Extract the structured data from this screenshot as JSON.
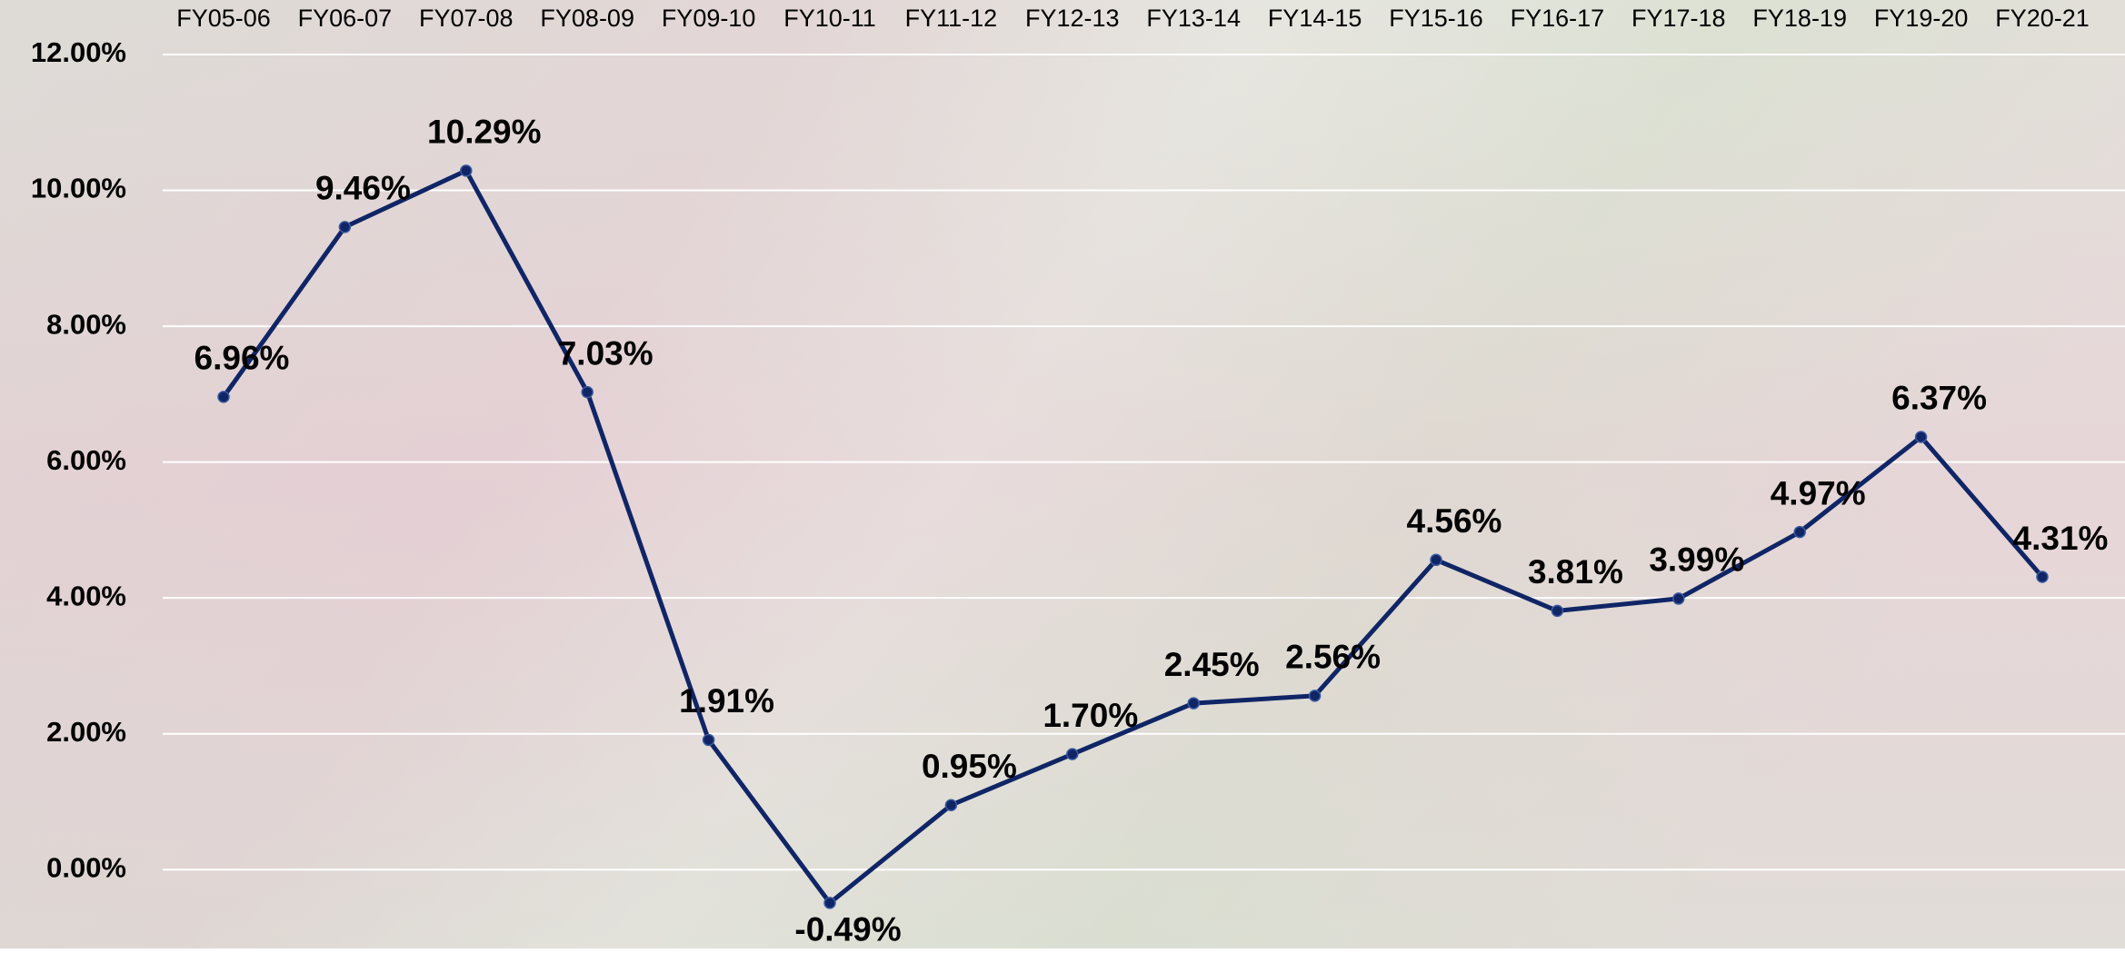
{
  "chart_data": {
    "type": "line",
    "categories": [
      "FY05-06",
      "FY06-07",
      "FY07-08",
      "FY08-09",
      "FY09-10",
      "FY10-11",
      "FY11-12",
      "FY12-13",
      "FY13-14",
      "FY14-15",
      "FY15-16",
      "FY16-17",
      "FY17-18",
      "FY18-19",
      "FY19-20",
      "FY20-21"
    ],
    "series": [
      {
        "color": "#0f2566",
        "values": [
          6.96,
          9.46,
          10.29,
          7.03,
          1.91,
          -0.49,
          0.95,
          1.7,
          2.45,
          2.56,
          4.56,
          3.81,
          3.99,
          4.97,
          6.37,
          4.31
        ],
        "value_labels": [
          "6.96%",
          "9.46%",
          "10.29%",
          "7.03%",
          "1.91%",
          "-0.49%",
          "0.95%",
          "1.70%",
          "2.45%",
          "2.56%",
          "4.56%",
          "3.81%",
          "3.99%",
          "4.97%",
          "6.37%",
          "4.31%"
        ]
      }
    ],
    "ylim": [
      -1.16,
      12
    ],
    "yticks": [
      {
        "value": 0,
        "label": "0.00%"
      },
      {
        "value": 2,
        "label": "2.00%"
      },
      {
        "value": 4,
        "label": "4.00%"
      },
      {
        "value": 6,
        "label": "6.00%"
      },
      {
        "value": 8,
        "label": "8.00%"
      },
      {
        "value": 10,
        "label": "10.00%"
      },
      {
        "value": 12,
        "label": "12.00%"
      }
    ],
    "grid": true
  }
}
